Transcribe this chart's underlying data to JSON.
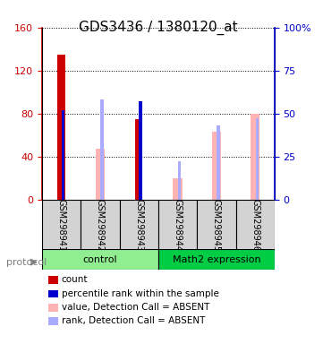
{
  "title": "GDS3436 / 1380120_at",
  "samples": [
    "GSM298941",
    "GSM298942",
    "GSM298943",
    "GSM298944",
    "GSM298945",
    "GSM298946"
  ],
  "groups": [
    {
      "name": "control",
      "color": "#90ee90",
      "samples": [
        0,
        1,
        2
      ]
    },
    {
      "name": "Math2 expression",
      "color": "#00cc00",
      "samples": [
        3,
        4,
        5
      ]
    }
  ],
  "red_bars": [
    135,
    null,
    75,
    null,
    null,
    null
  ],
  "pink_bars": [
    null,
    47,
    null,
    20,
    63,
    80
  ],
  "blue_markers": [
    52,
    null,
    57,
    null,
    null,
    null
  ],
  "light_blue_markers": [
    null,
    58,
    null,
    22,
    43,
    47
  ],
  "ylim_left": [
    0,
    160
  ],
  "ylim_right": [
    0,
    100
  ],
  "yticks_left": [
    0,
    40,
    80,
    120,
    160
  ],
  "yticks_right": [
    0,
    25,
    50,
    75,
    100
  ],
  "ytick_labels_right": [
    "0",
    "25",
    "50",
    "75",
    "100%"
  ],
  "red_color": "#cc0000",
  "pink_color": "#ffb3b3",
  "blue_color": "#0000cc",
  "light_blue_color": "#aaaaff",
  "bar_width": 0.35,
  "protocol_label": "protocol",
  "legend_items": [
    {
      "label": "count",
      "color": "#cc0000",
      "marker": "s"
    },
    {
      "label": "percentile rank within the sample",
      "color": "#0000cc",
      "marker": "s"
    },
    {
      "label": "value, Detection Call = ABSENT",
      "color": "#ffb3b3",
      "marker": "s"
    },
    {
      "label": "rank, Detection Call = ABSENT",
      "color": "#aaaaff",
      "marker": "s"
    }
  ],
  "ax_bg": "#f5f5f5",
  "plot_bg": "#ffffff"
}
